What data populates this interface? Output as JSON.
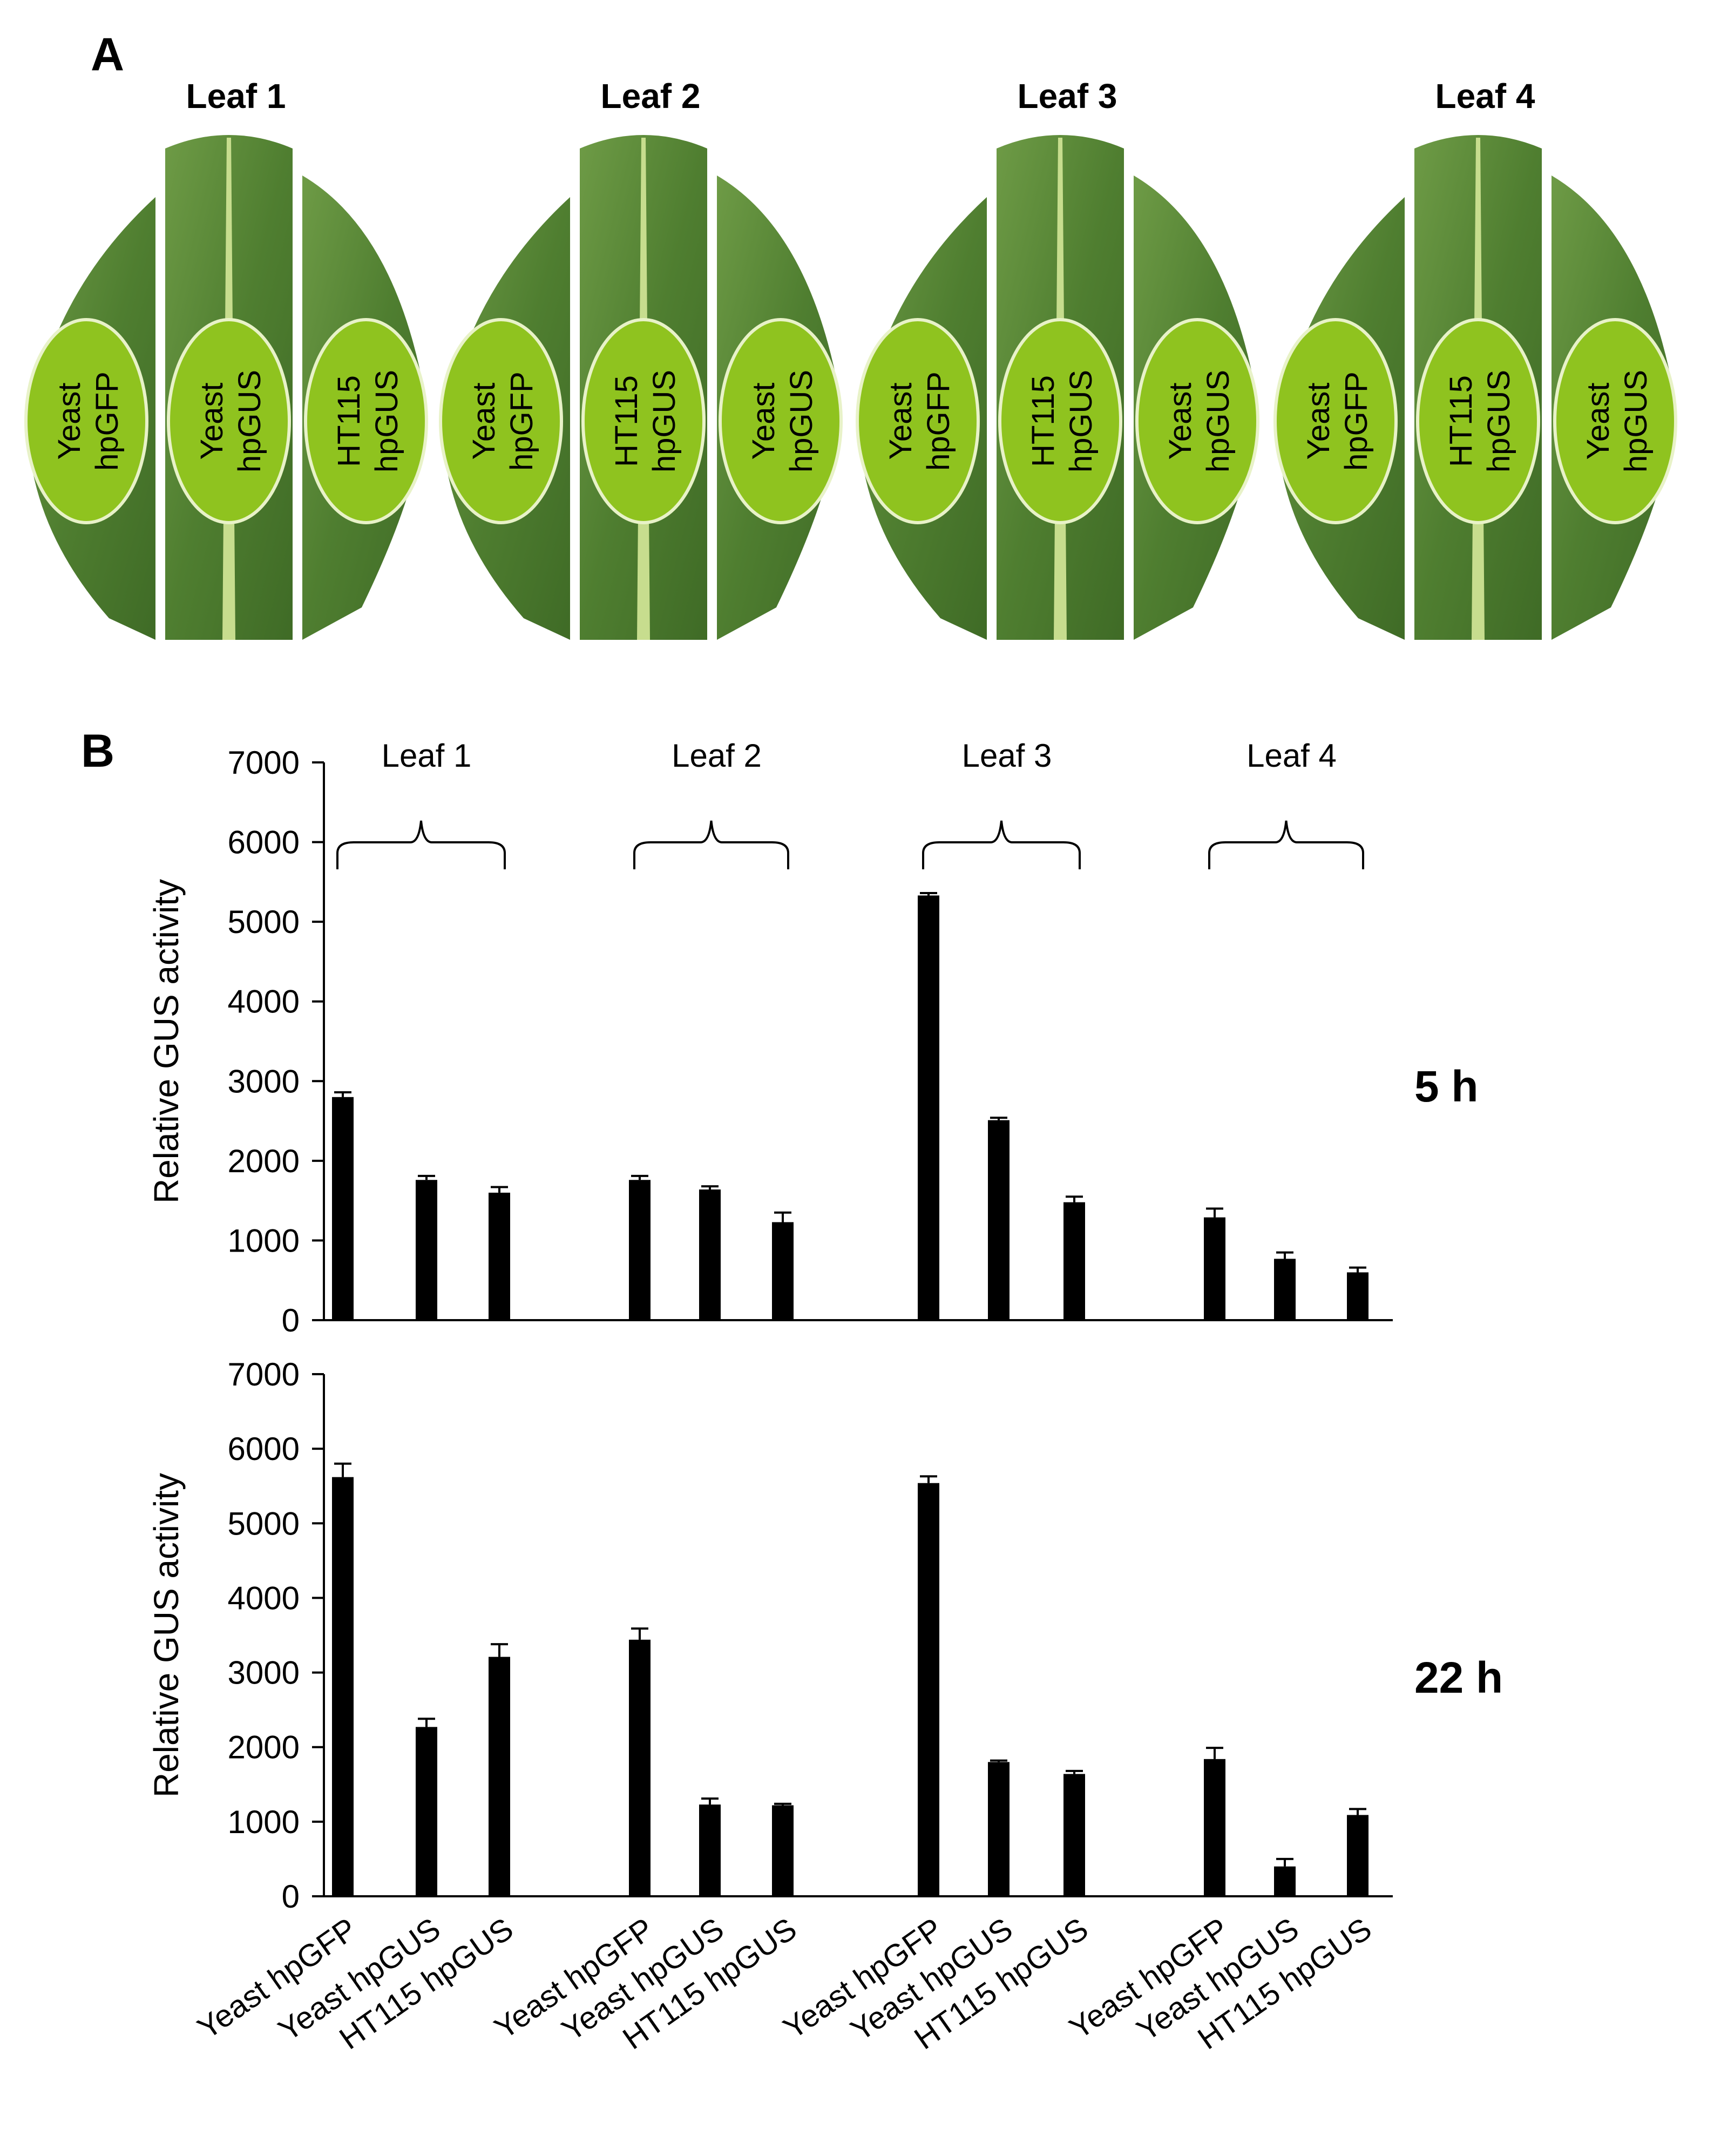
{
  "panel_a": {
    "letter": "A",
    "leaves": [
      {
        "title": "Leaf 1",
        "ovals": [
          [
            "Yeast",
            "hpGFP"
          ],
          [
            "Yeast",
            "hpGUS"
          ],
          [
            "HT115",
            "hpGUS"
          ]
        ]
      },
      {
        "title": "Leaf 2",
        "ovals": [
          [
            "Yeast",
            "hpGFP"
          ],
          [
            "HT115",
            "hpGUS"
          ],
          [
            "Yeast",
            "hpGUS"
          ]
        ]
      },
      {
        "title": "Leaf 3",
        "ovals": [
          [
            "Yeast",
            "hpGFP"
          ],
          [
            "HT115",
            "hpGUS"
          ],
          [
            "Yeast",
            "hpGUS"
          ]
        ]
      },
      {
        "title": "Leaf 4",
        "ovals": [
          [
            "Yeast",
            "hpGFP"
          ],
          [
            "HT115",
            "hpGUS"
          ],
          [
            "Yeast",
            "hpGUS"
          ]
        ]
      }
    ],
    "colors": {
      "leaf": "#4d7a2c",
      "leaf_light": "#6c9a45",
      "oval": "#8fc31f",
      "vein": "#c7dd8e"
    }
  },
  "panel_b": {
    "letter": "B",
    "bar_color": "#000000"
  },
  "chart_data": [
    {
      "type": "bar",
      "time_label": "5 h",
      "ylabel": "Relative GUS activity",
      "xlabel": "",
      "ylim": [
        0,
        7000
      ],
      "yticks": [
        0,
        1000,
        2000,
        3000,
        4000,
        5000,
        6000,
        7000
      ],
      "groups": [
        "Leaf 1",
        "Leaf 2",
        "Leaf 3",
        "Leaf 4"
      ],
      "categories": [
        "Yeast hpGFP",
        "Yeast hpGUS",
        "HT115 hpGUS",
        "Yeast hpGFP",
        "Yeast hpGUS",
        "HT115 hpGUS",
        "Yeast hpGFP",
        "Yeast hpGUS",
        "HT115 hpGUS",
        "Yeast hpGFP",
        "Yeast hpGUS",
        "HT115 hpGUS"
      ],
      "values": [
        2800,
        1760,
        1600,
        1760,
        1640,
        1230,
        5330,
        2510,
        1480,
        1290,
        770,
        600
      ],
      "errors": [
        60,
        50,
        70,
        50,
        40,
        120,
        30,
        30,
        70,
        110,
        80,
        60
      ]
    },
    {
      "type": "bar",
      "time_label": "22 h",
      "ylabel": "Relative GUS activity",
      "xlabel": "",
      "ylim": [
        0,
        7000
      ],
      "yticks": [
        0,
        1000,
        2000,
        3000,
        4000,
        5000,
        6000,
        7000
      ],
      "groups": [
        "Leaf 1",
        "Leaf 2",
        "Leaf 3",
        "Leaf 4"
      ],
      "categories": [
        "Yeast hpGFP",
        "Yeast hpGUS",
        "HT115 hpGUS",
        "Yeast hpGFP",
        "Yeast hpGUS",
        "HT115 hpGUS",
        "Yeast hpGFP",
        "Yeast hpGUS",
        "HT115 hpGUS",
        "Yeast hpGFP",
        "Yeast hpGUS",
        "HT115 hpGUS"
      ],
      "values": [
        5620,
        2270,
        3210,
        3440,
        1230,
        1220,
        5540,
        1800,
        1640,
        1840,
        400,
        1090
      ],
      "errors": [
        180,
        110,
        170,
        150,
        80,
        20,
        90,
        20,
        40,
        150,
        100,
        80
      ]
    }
  ]
}
